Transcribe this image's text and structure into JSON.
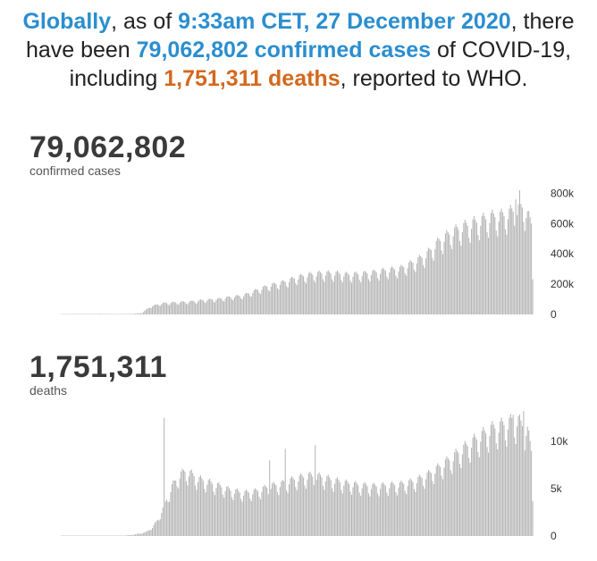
{
  "headline": {
    "part1": "Globally",
    "part2": ", as of ",
    "part3": "9:33am CET, 27 December 2020",
    "part4": ", there have been ",
    "part5": "79,062,802 confirmed cases",
    "part6": " of COVID-19, including ",
    "part7": "1,751,311 deaths",
    "part8": ", reported to WHO."
  },
  "colors": {
    "accent_blue": "#2b8ecf",
    "accent_orange": "#d2691e",
    "bar": "#b5b5b5"
  },
  "cases": {
    "total": "79,062,802",
    "label": "confirmed cases"
  },
  "deaths": {
    "total": "1,751,311",
    "label": "deaths"
  },
  "chart_data": [
    {
      "type": "bar",
      "title": "79,062,802",
      "subtitle": "confirmed cases",
      "ylim": [
        0,
        850000
      ],
      "yticks": [
        0,
        200000,
        400000,
        600000,
        800000
      ],
      "ytick_labels": [
        "0",
        "200k",
        "400k",
        "600k",
        "800k"
      ],
      "grid": false,
      "anchors": [
        [
          0,
          0
        ],
        [
          10,
          150
        ],
        [
          20,
          800
        ],
        [
          25,
          1200
        ],
        [
          28,
          3500
        ],
        [
          35,
          3000
        ],
        [
          45,
          1500
        ],
        [
          50,
          2500
        ],
        [
          58,
          5000
        ],
        [
          62,
          10000
        ],
        [
          65,
          30000
        ],
        [
          68,
          50000
        ],
        [
          72,
          60000
        ],
        [
          75,
          70000
        ],
        [
          80,
          75000
        ],
        [
          90,
          80000
        ],
        [
          100,
          85000
        ],
        [
          110,
          95000
        ],
        [
          120,
          100000
        ],
        [
          130,
          115000
        ],
        [
          140,
          125000
        ],
        [
          150,
          160000
        ],
        [
          160,
          190000
        ],
        [
          170,
          210000
        ],
        [
          180,
          240000
        ],
        [
          190,
          260000
        ],
        [
          200,
          270000
        ],
        [
          210,
          270000
        ],
        [
          220,
          260000
        ],
        [
          230,
          265000
        ],
        [
          240,
          275000
        ],
        [
          250,
          290000
        ],
        [
          260,
          300000
        ],
        [
          270,
          340000
        ],
        [
          280,
          390000
        ],
        [
          290,
          480000
        ],
        [
          300,
          540000
        ],
        [
          310,
          580000
        ],
        [
          320,
          610000
        ],
        [
          330,
          640000
        ],
        [
          340,
          650000
        ],
        [
          350,
          690000
        ],
        [
          355,
          710000
        ],
        [
          358,
          650000
        ],
        [
          361,
          600000
        ],
        [
          362,
          270000
        ]
      ],
      "spikes": [
        [
          352,
          820000
        ],
        [
          349,
          760000
        ]
      ]
    },
    {
      "type": "bar",
      "title": "1,751,311",
      "subtitle": "deaths",
      "ylim": [
        0,
        13500
      ],
      "yticks": [
        0,
        5000,
        10000
      ],
      "ytick_labels": [
        "0",
        "5k",
        "10k"
      ],
      "grid": false,
      "anchors": [
        [
          0,
          0
        ],
        [
          18,
          5
        ],
        [
          25,
          15
        ],
        [
          40,
          30
        ],
        [
          50,
          60
        ],
        [
          55,
          120
        ],
        [
          60,
          250
        ],
        [
          65,
          400
        ],
        [
          70,
          900
        ],
        [
          75,
          1900
        ],
        [
          80,
          3500
        ],
        [
          85,
          5200
        ],
        [
          90,
          6300
        ],
        [
          95,
          6800
        ],
        [
          100,
          6500
        ],
        [
          105,
          6000
        ],
        [
          110,
          5800
        ],
        [
          120,
          5300
        ],
        [
          130,
          4800
        ],
        [
          140,
          4500
        ],
        [
          150,
          4700
        ],
        [
          160,
          5200
        ],
        [
          170,
          5500
        ],
        [
          180,
          6000
        ],
        [
          190,
          6300
        ],
        [
          200,
          6200
        ],
        [
          210,
          5800
        ],
        [
          220,
          5500
        ],
        [
          230,
          5300
        ],
        [
          240,
          5200
        ],
        [
          250,
          5300
        ],
        [
          260,
          5400
        ],
        [
          270,
          5700
        ],
        [
          280,
          6300
        ],
        [
          290,
          7200
        ],
        [
          300,
          8200
        ],
        [
          310,
          9300
        ],
        [
          320,
          10300
        ],
        [
          330,
          11200
        ],
        [
          340,
          11700
        ],
        [
          350,
          12200
        ],
        [
          358,
          11000
        ],
        [
          361,
          9000
        ],
        [
          362,
          4300
        ]
      ],
      "spikes": [
        [
          79,
          12500
        ],
        [
          172,
          9200
        ],
        [
          195,
          9600
        ],
        [
          160,
          8000
        ],
        [
          355,
          13200
        ],
        [
          347,
          12800
        ]
      ]
    }
  ]
}
